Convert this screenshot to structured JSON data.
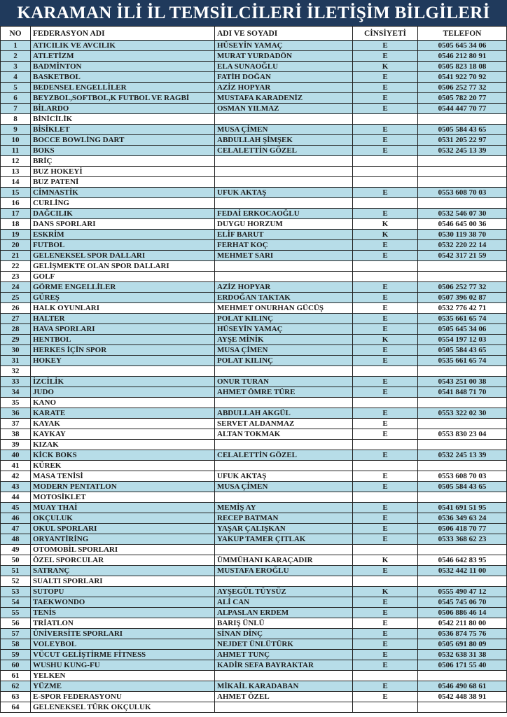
{
  "title": "KARAMAN İLİ İL TEMSİLCİLERİ İLETİŞİM BİLGİLERİ",
  "colors": {
    "title_bg": "#203a5c",
    "row_highlight": "#b7dde8"
  },
  "headers": {
    "no": "NO",
    "federation": "FEDERASYON ADI",
    "name": "ADI VE SOYADI",
    "gender": "CİNSİYETİ",
    "phone": "TELEFON"
  },
  "rows": [
    {
      "no": "1",
      "federation": "ATICILIK VE AVCILIK",
      "name": "HÜSEYİN YAMAÇ",
      "gender": "E",
      "phone": "0505 645 34 06",
      "highlighted": true
    },
    {
      "no": "2",
      "federation": "ATLETİZM",
      "name": "MURAT YURDADÖN",
      "gender": "E",
      "phone": "0546 212 80 91",
      "highlighted": true
    },
    {
      "no": "3",
      "federation": "BADMİNTON",
      "name": "ELA SUNAOĞLU",
      "gender": "K",
      "phone": "0505 823 18 08",
      "highlighted": true
    },
    {
      "no": "4",
      "federation": "BASKETBOL",
      "name": "FATİH DOĞAN",
      "gender": "E",
      "phone": "0541 922 70 92",
      "highlighted": true
    },
    {
      "no": "5",
      "federation": "BEDENSEL ENGELLİLER",
      "name": "AZİZ HOPYAR",
      "gender": "E",
      "phone": "0506 252 77 32",
      "highlighted": true
    },
    {
      "no": "6",
      "federation": "BEYZBOL,SOFTBOL,K FUTBOL VE RAGBİ",
      "name": "MUSTAFA KARADENİZ",
      "gender": "E",
      "phone": "0505 782 20 77",
      "highlighted": true
    },
    {
      "no": "7",
      "federation": "BİLARDO",
      "name": "OSMAN YILMAZ",
      "gender": "E",
      "phone": "0544 447 70 77",
      "highlighted": true
    },
    {
      "no": "8",
      "federation": "BİNİCİLİK",
      "name": "",
      "gender": "",
      "phone": "",
      "highlighted": false
    },
    {
      "no": "9",
      "federation": "BİSİKLET",
      "name": "MUSA ÇİMEN",
      "gender": "E",
      "phone": "0505 584 43 65",
      "highlighted": true
    },
    {
      "no": "10",
      "federation": "BOCCE BOWLİNG DART",
      "name": "ABDULLAH ŞİMŞEK",
      "gender": "E",
      "phone": "0531 205 22 97",
      "highlighted": true
    },
    {
      "no": "11",
      "federation": "BOKS",
      "name": "CELALETTİN GÖZEL",
      "gender": "E",
      "phone": "0532 245 13 39",
      "highlighted": true
    },
    {
      "no": "12",
      "federation": "BRİÇ",
      "name": "",
      "gender": "",
      "phone": "",
      "highlighted": false
    },
    {
      "no": "13",
      "federation": "BUZ HOKEYİ",
      "name": "",
      "gender": "",
      "phone": "",
      "highlighted": false
    },
    {
      "no": "14",
      "federation": "BUZ PATENİ",
      "name": "",
      "gender": "",
      "phone": "",
      "highlighted": false
    },
    {
      "no": "15",
      "federation": "CİMNASTİK",
      "name": "UFUK AKTAŞ",
      "gender": "E",
      "phone": "0553 608 70 03",
      "highlighted": true
    },
    {
      "no": "16",
      "federation": "CURLİNG",
      "name": "",
      "gender": "",
      "phone": "",
      "highlighted": false
    },
    {
      "no": "17",
      "federation": "DAĞCILIK",
      "name": "FEDAİ ERKOCAOĞLU",
      "gender": "E",
      "phone": "0532 546 07 30",
      "highlighted": true
    },
    {
      "no": "18",
      "federation": "DANS SPORLARI",
      "name": "DUYGU HORZUM",
      "gender": "K",
      "phone": "0546 645 00 36",
      "highlighted": false
    },
    {
      "no": "19",
      "federation": "ESKRİM",
      "name": "ELİF BARUT",
      "gender": "K",
      "phone": "0530 119 38 70",
      "highlighted": true
    },
    {
      "no": "20",
      "federation": "FUTBOL",
      "name": "FERHAT KOÇ",
      "gender": "E",
      "phone": "0532 220 22 14",
      "highlighted": true
    },
    {
      "no": "21",
      "federation": "GELENEKSEL SPOR DALLARI",
      "name": "MEHMET SARI",
      "gender": "E",
      "phone": "0542 317 21 59",
      "highlighted": true
    },
    {
      "no": "22",
      "federation": "GELİŞMEKTE OLAN SPOR DALLARI",
      "name": "",
      "gender": "",
      "phone": "",
      "highlighted": false
    },
    {
      "no": "23",
      "federation": "GOLF",
      "name": "",
      "gender": "",
      "phone": "",
      "highlighted": false
    },
    {
      "no": "24",
      "federation": "GÖRME ENGELLİLER",
      "name": "AZİZ HOPYAR",
      "gender": "E",
      "phone": "0506 252 77 32",
      "highlighted": true
    },
    {
      "no": "25",
      "federation": "GÜREŞ",
      "name": "ERDOĞAN TAKTAK",
      "gender": "E",
      "phone": "0507 396 02 87",
      "highlighted": true
    },
    {
      "no": "26",
      "federation": "HALK OYUNLARI",
      "name": "MEHMET ONURHAN GÜCÜŞ",
      "gender": "E",
      "phone": "0532 776 42 71",
      "highlighted": false
    },
    {
      "no": "27",
      "federation": "HALTER",
      "name": "POLAT KILINÇ",
      "gender": "E",
      "phone": "0535 661 65 74",
      "highlighted": true
    },
    {
      "no": "28",
      "federation": "HAVA SPORLARI",
      "name": "HÜSEYİN YAMAÇ",
      "gender": "E",
      "phone": "0505 645 34 06",
      "highlighted": true
    },
    {
      "no": "29",
      "federation": "HENTBOL",
      "name": "AYŞE MİNİK",
      "gender": "K",
      "phone": "0554 197 12 03",
      "highlighted": true
    },
    {
      "no": "30",
      "federation": "HERKES İÇİN SPOR",
      "name": "MUSA ÇİMEN",
      "gender": "E",
      "phone": "0505 584 43 65",
      "highlighted": true
    },
    {
      "no": "31",
      "federation": "HOKEY",
      "name": "POLAT KILINÇ",
      "gender": "E",
      "phone": "0535 661 65 74",
      "highlighted": true
    },
    {
      "no": "32",
      "federation": "",
      "name": "",
      "gender": "",
      "phone": "",
      "highlighted": false
    },
    {
      "no": "33",
      "federation": "İZCİLİK",
      "name": "ONUR TURAN",
      "gender": "E",
      "phone": "0543 251 00 38",
      "highlighted": true
    },
    {
      "no": "34",
      "federation": "JUDO",
      "name": "AHMET ÖMRE TÜRE",
      "gender": "E",
      "phone": "0541 848 71 70",
      "highlighted": true
    },
    {
      "no": "35",
      "federation": "KANO",
      "name": "",
      "gender": "",
      "phone": "",
      "highlighted": false
    },
    {
      "no": "36",
      "federation": "KARATE",
      "name": "ABDULLAH AKGÜL",
      "gender": "E",
      "phone": "0553 322 02 30",
      "highlighted": true
    },
    {
      "no": "37",
      "federation": "KAYAK",
      "name": "SERVET ALDANMAZ",
      "gender": "E",
      "phone": "",
      "highlighted": false
    },
    {
      "no": "38",
      "federation": "KAYKAY",
      "name": "ALTAN TOKMAK",
      "gender": "E",
      "phone": "0553 830 23 04",
      "highlighted": false
    },
    {
      "no": "39",
      "federation": "KIZAK",
      "name": "",
      "gender": "",
      "phone": "",
      "highlighted": false
    },
    {
      "no": "40",
      "federation": "KİCK BOKS",
      "name": "CELALETTİN GÖZEL",
      "gender": "E",
      "phone": "0532 245 13 39",
      "highlighted": true
    },
    {
      "no": "41",
      "federation": "KÜREK",
      "name": "",
      "gender": "",
      "phone": "",
      "highlighted": false
    },
    {
      "no": "42",
      "federation": "MASA TENİSİ",
      "name": "UFUK AKTAŞ",
      "gender": "E",
      "phone": "0553 608 70 03",
      "highlighted": false
    },
    {
      "no": "43",
      "federation": "MODERN PENTATLON",
      "name": "MUSA ÇİMEN",
      "gender": "E",
      "phone": "0505 584 43 65",
      "highlighted": true
    },
    {
      "no": "44",
      "federation": "MOTOSİKLET",
      "name": "",
      "gender": "",
      "phone": "",
      "highlighted": false
    },
    {
      "no": "45",
      "federation": "MUAY THAİ",
      "name": "MEMİŞ AY",
      "gender": "E",
      "phone": "0541 691 51 95",
      "highlighted": true
    },
    {
      "no": "46",
      "federation": "OKÇULUK",
      "name": "RECEP BATMAN",
      "gender": "E",
      "phone": "0536 349 63 24",
      "highlighted": true
    },
    {
      "no": "47",
      "federation": "OKUL SPORLARI",
      "name": "YAŞAR ÇALIŞKAN",
      "gender": "E",
      "phone": "0506 418 70 77",
      "highlighted": true
    },
    {
      "no": "48",
      "federation": "ORYANTİRİNG",
      "name": "YAKUP TAMER ÇITLAK",
      "gender": "E",
      "phone": "0533 368 62 23",
      "highlighted": true
    },
    {
      "no": "49",
      "federation": "OTOMOBİL SPORLARI",
      "name": "",
      "gender": "",
      "phone": "",
      "highlighted": false
    },
    {
      "no": "50",
      "federation": "ÖZEL SPORCULAR",
      "name": "ÜMMÜHANI KARAÇADIR",
      "gender": "K",
      "phone": "0546 642 83 95",
      "highlighted": false
    },
    {
      "no": "51",
      "federation": "SATRANÇ",
      "name": "MUSTAFA EROĞLU",
      "gender": "E",
      "phone": "0532 442 11 00",
      "highlighted": true
    },
    {
      "no": "52",
      "federation": "SUALTI SPORLARI",
      "name": "",
      "gender": "",
      "phone": "",
      "highlighted": false
    },
    {
      "no": "53",
      "federation": "SUTOPU",
      "name": "AYŞEGÜL TÜYSÜZ",
      "gender": "K",
      "phone": "0555 490 47 12",
      "highlighted": true
    },
    {
      "no": "54",
      "federation": "TAEKWONDO",
      "name": "ALİ CAN",
      "gender": "E",
      "phone": "0545 745 06 70",
      "highlighted": true
    },
    {
      "no": "55",
      "federation": "TENİS",
      "name": "ALPASLAN ERDEM",
      "gender": "E",
      "phone": "0506 886 46 14",
      "highlighted": true
    },
    {
      "no": "56",
      "federation": "TRİATLON",
      "name": "BARIŞ ÜNLÜ",
      "gender": "E",
      "phone": "0542 211 80 00",
      "highlighted": false
    },
    {
      "no": "57",
      "federation": "ÜNİVERSİTE SPORLARI",
      "name": "SİNAN DİNÇ",
      "gender": "E",
      "phone": "0536 874 75 76",
      "highlighted": true
    },
    {
      "no": "58",
      "federation": "VOLEYBOL",
      "name": "NEJDET ÜNLÜTÜRK",
      "gender": "E",
      "phone": "0505 691 80 09",
      "highlighted": true
    },
    {
      "no": "59",
      "federation": "VÜCUT GELİŞTİRME FİTNESS",
      "name": "AHMET TUNÇ",
      "gender": "E",
      "phone": "0532 638 31 38",
      "highlighted": true
    },
    {
      "no": "60",
      "federation": "WUSHU KUNG-FU",
      "name": "KADİR SEFA BAYRAKTAR",
      "gender": "E",
      "phone": "0506 171 55 40",
      "highlighted": true
    },
    {
      "no": "61",
      "federation": "YELKEN",
      "name": "",
      "gender": "",
      "phone": "",
      "highlighted": false
    },
    {
      "no": "62",
      "federation": "YÜZME",
      "name": "MİKAİL KARADABAN",
      "gender": "E",
      "phone": "0546 490 68 61",
      "highlighted": true
    },
    {
      "no": "63",
      "federation": "E-SPOR FEDERASYONU",
      "name": "AHMET ÖZEL",
      "gender": "E",
      "phone": "0542 448 38 91",
      "highlighted": false
    },
    {
      "no": "64",
      "federation": "GELENEKSEL TÜRK OKÇULUK",
      "name": "",
      "gender": "",
      "phone": "",
      "highlighted": false
    }
  ]
}
